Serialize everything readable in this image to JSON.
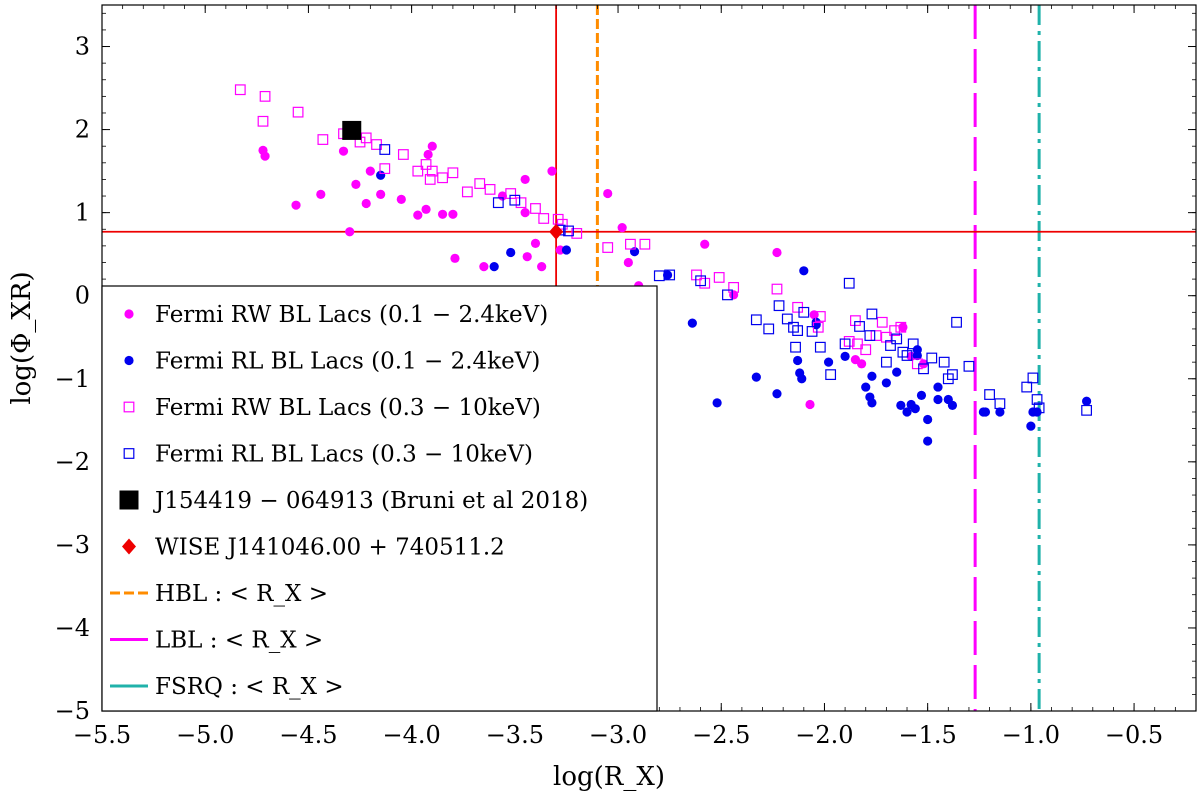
{
  "chart_data": {
    "type": "scatter",
    "xlabel": "log(R_X)",
    "ylabel": "log(Φ_XR)",
    "xlim": [
      -5.5,
      -0.2
    ],
    "ylim": [
      -5.0,
      3.5
    ],
    "x_ticks": [
      -5.5,
      -5.0,
      -4.5,
      -4.0,
      -3.5,
      -3.0,
      -2.5,
      -2.0,
      -1.5,
      -1.0,
      -0.5
    ],
    "x_tick_labels": [
      "−5.5",
      "−5.0",
      "−4.5",
      "−4.0",
      "−3.5",
      "−3.0",
      "−2.5",
      "−2.0",
      "−1.5",
      "−1.0",
      "−0.5"
    ],
    "y_ticks": [
      -5,
      -4,
      -3,
      -2,
      -1,
      0,
      1,
      2,
      3
    ],
    "y_tick_labels": [
      "−5",
      "−4",
      "−3",
      "−2",
      "−1",
      "0",
      "1",
      "2",
      "3"
    ],
    "legend_location": "lower-left",
    "series": [
      {
        "name": "Fermi RW BL Lacs (0.1 − 2.4keV)",
        "marker": "filled-circle",
        "color": "#ff00ff",
        "points": [
          [
            -4.72,
            1.75
          ],
          [
            -4.71,
            1.68
          ],
          [
            -4.56,
            1.09
          ],
          [
            -4.44,
            1.22
          ],
          [
            -4.33,
            1.74
          ],
          [
            -4.3,
            0.77
          ],
          [
            -4.27,
            1.34
          ],
          [
            -4.22,
            1.11
          ],
          [
            -4.2,
            1.5
          ],
          [
            -4.15,
            1.22
          ],
          [
            -4.05,
            1.16
          ],
          [
            -3.97,
            0.97
          ],
          [
            -3.93,
            1.04
          ],
          [
            -3.92,
            1.7
          ],
          [
            -3.9,
            1.8
          ],
          [
            -3.85,
            0.98
          ],
          [
            -3.8,
            0.98
          ],
          [
            -3.79,
            0.45
          ],
          [
            -3.65,
            0.35
          ],
          [
            -3.56,
            1.2
          ],
          [
            -3.45,
            1.0
          ],
          [
            -3.45,
            1.4
          ],
          [
            -3.44,
            0.47
          ],
          [
            -3.4,
            0.63
          ],
          [
            -3.37,
            0.35
          ],
          [
            -3.32,
            1.5
          ],
          [
            -3.28,
            0.55
          ],
          [
            -3.05,
            1.23
          ],
          [
            -2.98,
            0.82
          ],
          [
            -2.97,
            -0.05
          ],
          [
            -2.95,
            0.4
          ],
          [
            -2.92,
            0.0
          ],
          [
            -2.9,
            0.12
          ],
          [
            -2.58,
            0.62
          ],
          [
            -2.44,
            0.01
          ],
          [
            -2.23,
            0.52
          ],
          [
            -2.05,
            -0.23
          ],
          [
            -2.07,
            -1.31
          ],
          [
            -1.85,
            -0.77
          ],
          [
            -1.62,
            -0.38
          ],
          [
            -1.82,
            -0.82
          ],
          [
            -1.58,
            -0.73
          ],
          [
            -1.52,
            -0.82
          ]
        ]
      },
      {
        "name": "Fermi RL BL Lacs (0.1 − 2.4keV)",
        "marker": "filled-circle",
        "color": "#0000ee",
        "points": [
          [
            -4.15,
            1.45
          ],
          [
            -3.6,
            0.35
          ],
          [
            -3.52,
            0.52
          ],
          [
            -3.25,
            0.55
          ],
          [
            -2.92,
            0.53
          ],
          [
            -2.85,
            -0.1
          ],
          [
            -2.76,
            0.25
          ],
          [
            -2.64,
            -0.33
          ],
          [
            -2.52,
            -1.29
          ],
          [
            -2.33,
            -0.98
          ],
          [
            -2.23,
            -1.18
          ],
          [
            -2.13,
            -0.78
          ],
          [
            -2.12,
            -0.93
          ],
          [
            -2.11,
            -1.0
          ],
          [
            -2.1,
            0.3
          ],
          [
            -2.04,
            -0.32
          ],
          [
            -2.04,
            -0.35
          ],
          [
            -1.98,
            -0.8
          ],
          [
            -1.9,
            -0.73
          ],
          [
            -1.8,
            -1.1
          ],
          [
            -1.78,
            -1.22
          ],
          [
            -1.77,
            -1.29
          ],
          [
            -1.77,
            -0.97
          ],
          [
            -1.7,
            -1.05
          ],
          [
            -1.65,
            -0.92
          ],
          [
            -1.63,
            -1.32
          ],
          [
            -1.6,
            -1.4
          ],
          [
            -1.58,
            -1.31
          ],
          [
            -1.56,
            -1.36
          ],
          [
            -1.55,
            -0.65
          ],
          [
            -1.55,
            -0.72
          ],
          [
            -1.53,
            -1.2
          ],
          [
            -1.5,
            -1.75
          ],
          [
            -1.5,
            -1.49
          ],
          [
            -1.45,
            -1.25
          ],
          [
            -1.45,
            -1.1
          ],
          [
            -1.4,
            -1.25
          ],
          [
            -1.38,
            -1.32
          ],
          [
            -1.23,
            -1.4
          ],
          [
            -1.15,
            -1.4
          ],
          [
            -1.0,
            -1.57
          ],
          [
            -0.99,
            -1.4
          ],
          [
            -0.97,
            -1.4
          ],
          [
            -0.73,
            -1.27
          ],
          [
            -1.22,
            -1.4
          ]
        ]
      },
      {
        "name": "Fermi RW BL Lacs (0.3 − 10keV)",
        "marker": "open-square",
        "color": "#ff00ff",
        "points": [
          [
            -4.83,
            2.48
          ],
          [
            -4.71,
            2.4
          ],
          [
            -4.72,
            2.1
          ],
          [
            -4.55,
            2.21
          ],
          [
            -4.43,
            1.88
          ],
          [
            -4.33,
            1.95
          ],
          [
            -4.25,
            1.85
          ],
          [
            -4.22,
            1.9
          ],
          [
            -4.17,
            1.82
          ],
          [
            -4.13,
            1.53
          ],
          [
            -4.04,
            1.7
          ],
          [
            -3.97,
            1.5
          ],
          [
            -3.93,
            1.58
          ],
          [
            -3.91,
            1.4
          ],
          [
            -3.9,
            1.5
          ],
          [
            -3.85,
            1.42
          ],
          [
            -3.8,
            1.48
          ],
          [
            -3.73,
            1.25
          ],
          [
            -3.67,
            1.35
          ],
          [
            -3.62,
            1.28
          ],
          [
            -3.52,
            1.23
          ],
          [
            -3.47,
            1.12
          ],
          [
            -3.4,
            1.05
          ],
          [
            -3.36,
            0.93
          ],
          [
            -3.29,
            0.92
          ],
          [
            -3.27,
            0.86
          ],
          [
            -3.2,
            0.75
          ],
          [
            -3.05,
            0.58
          ],
          [
            -2.94,
            0.62
          ],
          [
            -2.87,
            0.62
          ],
          [
            -2.62,
            0.25
          ],
          [
            -2.58,
            0.15
          ],
          [
            -2.51,
            0.22
          ],
          [
            -2.44,
            0.1
          ],
          [
            -2.23,
            0.08
          ],
          [
            -2.13,
            -0.14
          ],
          [
            -2.03,
            -0.38
          ],
          [
            -2.02,
            -0.25
          ],
          [
            -1.88,
            -0.55
          ],
          [
            -1.85,
            -0.3
          ],
          [
            -1.84,
            -0.58
          ],
          [
            -1.8,
            -0.65
          ],
          [
            -1.75,
            -0.48
          ],
          [
            -1.72,
            -0.32
          ],
          [
            -1.7,
            -0.5
          ],
          [
            -1.66,
            -0.42
          ],
          [
            -1.63,
            -0.38
          ],
          [
            -1.55,
            -0.82
          ]
        ]
      },
      {
        "name": "Fermi RL BL Lacs (0.3 − 10keV)",
        "marker": "open-square",
        "color": "#0000ee",
        "points": [
          [
            -4.13,
            1.76
          ],
          [
            -3.58,
            1.12
          ],
          [
            -3.5,
            1.15
          ],
          [
            -3.28,
            0.79
          ],
          [
            -3.24,
            0.78
          ],
          [
            -2.8,
            0.24
          ],
          [
            -2.75,
            0.25
          ],
          [
            -2.6,
            0.18
          ],
          [
            -2.47,
            0.01
          ],
          [
            -2.33,
            -0.29
          ],
          [
            -2.27,
            -0.4
          ],
          [
            -2.22,
            -0.12
          ],
          [
            -2.18,
            -0.28
          ],
          [
            -2.15,
            -0.38
          ],
          [
            -2.14,
            -0.62
          ],
          [
            -2.13,
            -0.42
          ],
          [
            -2.1,
            -0.2
          ],
          [
            -2.06,
            -0.43
          ],
          [
            -2.02,
            -0.62
          ],
          [
            -1.97,
            -0.95
          ],
          [
            -1.9,
            -0.58
          ],
          [
            -1.88,
            0.15
          ],
          [
            -1.83,
            -0.37
          ],
          [
            -1.78,
            -0.48
          ],
          [
            -1.77,
            -0.22
          ],
          [
            -1.7,
            -0.8
          ],
          [
            -1.68,
            -0.6
          ],
          [
            -1.65,
            -0.52
          ],
          [
            -1.62,
            -0.68
          ],
          [
            -1.6,
            -0.72
          ],
          [
            -1.57,
            -0.58
          ],
          [
            -1.52,
            -0.88
          ],
          [
            -1.48,
            -0.75
          ],
          [
            -1.42,
            -0.8
          ],
          [
            -1.4,
            -1.0
          ],
          [
            -1.38,
            -0.95
          ],
          [
            -1.36,
            -0.32
          ],
          [
            -1.3,
            -0.85
          ],
          [
            -1.2,
            -1.19
          ],
          [
            -1.15,
            -1.3
          ],
          [
            -1.02,
            -1.1
          ],
          [
            -0.99,
            -0.99
          ],
          [
            -0.97,
            -1.25
          ],
          [
            -0.96,
            -1.35
          ],
          [
            -0.73,
            -1.38
          ]
        ]
      },
      {
        "name": "J154419 − 064913 (Bruni et al 2018)",
        "marker": "large-filled-square",
        "color": "#000000",
        "points": [
          [
            -4.29,
            1.99
          ]
        ]
      },
      {
        "name": "WISE J141046.00 + 740511.2",
        "marker": "filled-diamond",
        "color": "#ee0000",
        "points": [
          [
            -3.3,
            0.77
          ]
        ]
      }
    ],
    "reference_lines": [
      {
        "name": "HBL : < R_X >",
        "orientation": "vertical",
        "x": -3.1,
        "color": "#ff8c00",
        "style": "short-dash"
      },
      {
        "name": "LBL : < R_X >",
        "orientation": "vertical",
        "x": -1.27,
        "color": "#ff00ff",
        "style": "long-dash"
      },
      {
        "name": "FSRQ : < R_X >",
        "orientation": "vertical",
        "x": -0.96,
        "color": "#20b2aa",
        "style": "dash-dot"
      },
      {
        "name": "WISE source x",
        "orientation": "vertical",
        "x": -3.3,
        "color": "#ee0000",
        "style": "solid"
      },
      {
        "name": "WISE source y",
        "orientation": "horizontal",
        "y": 0.77,
        "color": "#ee0000",
        "style": "solid"
      }
    ],
    "legend_entries": [
      {
        "text": "Fermi RW BL Lacs (0.1 − 2.4keV)",
        "marker": "filled-circle",
        "color": "#ff00ff"
      },
      {
        "text": "Fermi RL BL Lacs (0.1 − 2.4keV)",
        "marker": "filled-circle",
        "color": "#0000ee"
      },
      {
        "text": "Fermi RW BL Lacs (0.3 − 10keV)",
        "marker": "open-square",
        "color": "#ff00ff"
      },
      {
        "text": "Fermi RL BL Lacs (0.3 − 10keV)",
        "marker": "open-square",
        "color": "#0000ee"
      },
      {
        "text": "J154419 − 064913 (Bruni et al 2018)",
        "marker": "large-filled-square",
        "color": "#000000"
      },
      {
        "text": "WISE J141046.00 + 740511.2",
        "marker": "filled-diamond",
        "color": "#ee0000"
      },
      {
        "text": "HBL : < R_X >",
        "marker": "short-dash-line",
        "color": "#ff8c00"
      },
      {
        "text": "LBL : < R_X >",
        "marker": "long-dash-line",
        "color": "#ff00ff"
      },
      {
        "text": "FSRQ : < R_X >",
        "marker": "dash-dot-line",
        "color": "#20b2aa"
      }
    ]
  }
}
